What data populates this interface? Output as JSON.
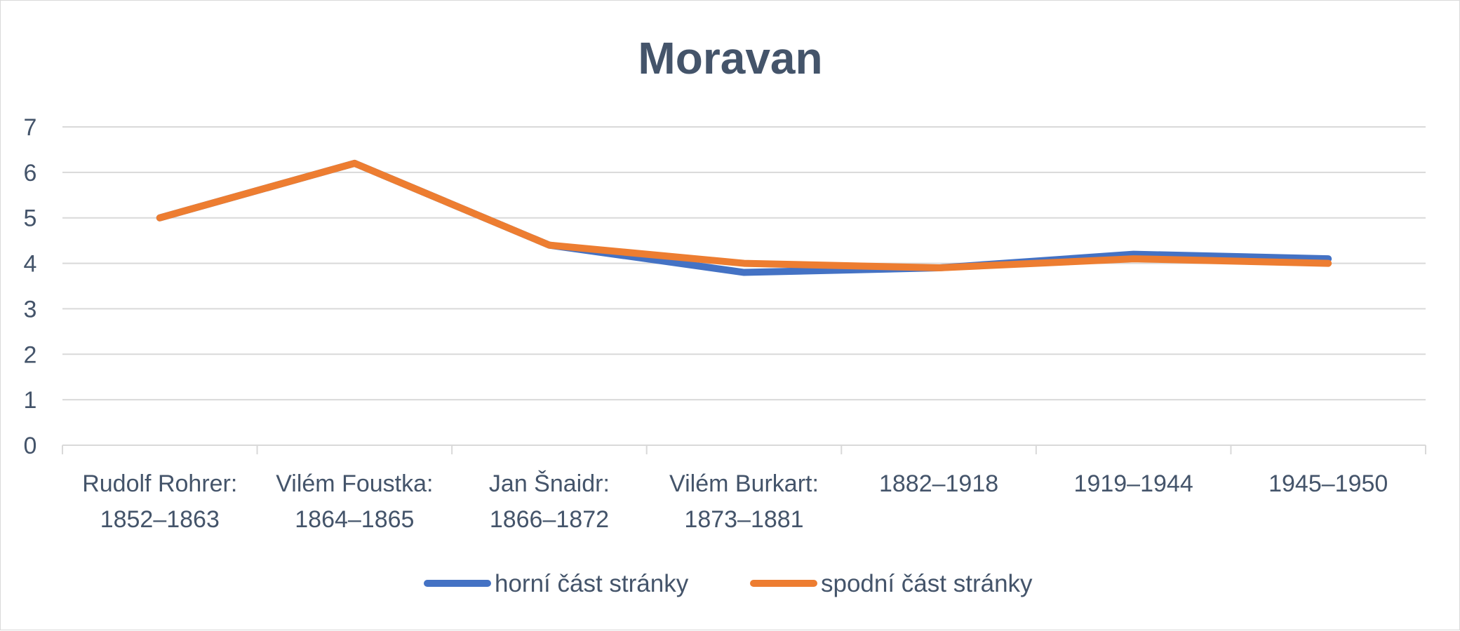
{
  "chart_data": {
    "type": "line",
    "title": "Moravan",
    "xlabel": "",
    "ylabel": "",
    "ylim": [
      0,
      7
    ],
    "yticks": [
      "0",
      "1",
      "2",
      "3",
      "4",
      "5",
      "6",
      "7"
    ],
    "grid": true,
    "legend_position": "bottom",
    "categories": [
      [
        "Rudolf Rohrer:",
        "1852–1863"
      ],
      [
        "Vilém Foustka:",
        "1864–1865"
      ],
      [
        "Jan Šnaidr:",
        "1866–1872"
      ],
      [
        "Vilém Burkart:",
        "1873–1881"
      ],
      [
        "1882–1918"
      ],
      [
        "1919–1944"
      ],
      [
        "1945–1950"
      ]
    ],
    "series": [
      {
        "name": "horní část stránky",
        "color": "#4472c4",
        "values": [
          5.0,
          6.2,
          4.4,
          3.8,
          3.9,
          4.2,
          4.1
        ]
      },
      {
        "name": "spodní část stránky",
        "color": "#ed7d31",
        "values": [
          5.0,
          6.2,
          4.4,
          4.0,
          3.9,
          4.1,
          4.0
        ]
      }
    ],
    "colors": {
      "text": "#44546a",
      "grid": "#d9d9d9",
      "frame": "#d9d9d9"
    }
  }
}
